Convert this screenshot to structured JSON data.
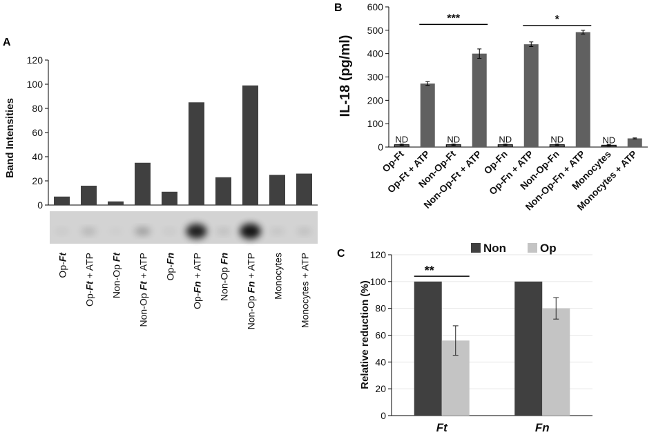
{
  "chart_data": [
    {
      "panel": "A",
      "type": "bar",
      "ylabel": "Band Intensities",
      "ylim": [
        0,
        120
      ],
      "yticks": [
        0,
        20,
        40,
        60,
        80,
        100,
        120
      ],
      "categories": [
        {
          "parts": [
            {
              "t": "Op-",
              "i": false
            },
            {
              "t": "Ft",
              "i": true
            }
          ]
        },
        {
          "parts": [
            {
              "t": "Op-",
              "i": false
            },
            {
              "t": "Ft",
              "i": true
            },
            {
              "t": " + ATP",
              "i": false
            }
          ]
        },
        {
          "parts": [
            {
              "t": "Non-Op ",
              "i": false
            },
            {
              "t": "Ft",
              "i": true
            }
          ]
        },
        {
          "parts": [
            {
              "t": "Non-Op ",
              "i": false
            },
            {
              "t": "Ft",
              "i": true
            },
            {
              "t": " + ATP",
              "i": false
            }
          ]
        },
        {
          "parts": [
            {
              "t": "Op-",
              "i": false
            },
            {
              "t": "Fn",
              "i": true
            }
          ]
        },
        {
          "parts": [
            {
              "t": "Op-",
              "i": false
            },
            {
              "t": "Fn",
              "i": true
            },
            {
              "t": " + ATP",
              "i": false
            }
          ]
        },
        {
          "parts": [
            {
              "t": "Non-Op ",
              "i": false
            },
            {
              "t": "Fn",
              "i": true
            }
          ]
        },
        {
          "parts": [
            {
              "t": "Non-Op ",
              "i": false
            },
            {
              "t": "Fn",
              "i": true
            },
            {
              "t": " + ATP",
              "i": false
            }
          ]
        },
        {
          "parts": [
            {
              "t": "Monocytes",
              "i": false
            }
          ]
        },
        {
          "parts": [
            {
              "t": "Monocytes + ATP",
              "i": false
            }
          ]
        }
      ],
      "values": [
        7,
        16,
        3,
        35,
        11,
        85,
        23,
        99,
        25,
        26
      ],
      "blot_intensity": [
        0.05,
        0.15,
        0.03,
        0.25,
        0.05,
        0.85,
        0.1,
        0.9,
        0.08,
        0.1
      ]
    },
    {
      "panel": "B",
      "type": "bar",
      "ylabel": "IL-18 (pg/ml)",
      "ylim": [
        0,
        600
      ],
      "yticks": [
        0,
        100,
        200,
        300,
        400,
        500,
        600
      ],
      "categories": [
        "Op-Ft",
        "Op-Ft + ATP",
        "Non-Op-Ft",
        "Non-Op-Ft + ATP",
        "Op-Fn",
        "Op-Fn + ATP",
        "Non-Op-Fn",
        "Non-Op-Fn + ATP",
        "Monocytes",
        "Monocytes + ATP"
      ],
      "values": [
        10,
        272,
        10,
        400,
        10,
        440,
        10,
        492,
        8,
        37
      ],
      "errors": [
        3,
        8,
        3,
        20,
        3,
        10,
        3,
        8,
        3,
        2
      ],
      "bar_labels": [
        "ND",
        "",
        "ND",
        "",
        "ND",
        "",
        "ND",
        "",
        "ND",
        ""
      ],
      "significance": [
        {
          "from": 1,
          "to": 3,
          "label": "***",
          "y": 525
        },
        {
          "from": 5,
          "to": 7,
          "label": "*",
          "y": 520
        }
      ]
    },
    {
      "panel": "C",
      "type": "bar",
      "ylabel": "Relative reduction (%)",
      "ylim": [
        0,
        120
      ],
      "yticks": [
        0,
        20,
        40,
        60,
        80,
        100,
        120
      ],
      "categories": [
        "Ft",
        "Fn"
      ],
      "series": [
        {
          "name": "Non",
          "color": "#404040",
          "values": [
            100,
            100
          ],
          "errors": [
            0,
            0
          ]
        },
        {
          "name": "Op",
          "color": "#c4c4c4",
          "values": [
            56,
            80
          ],
          "errors": [
            11,
            8
          ]
        }
      ],
      "legend": "top",
      "significance": [
        {
          "group": 0,
          "label": "**",
          "y": 104
        }
      ]
    }
  ],
  "labels": {
    "panel_a": "A",
    "panel_b": "B",
    "panel_c": "C",
    "nd": "ND"
  }
}
